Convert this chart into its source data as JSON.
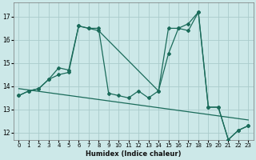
{
  "xlabel": "Humidex (Indice chaleur)",
  "background_color": "#cce8e8",
  "grid_color": "#aacccc",
  "line_color": "#1a6b5a",
  "yticks": [
    12,
    13,
    14,
    15,
    16,
    17
  ],
  "xticks": [
    0,
    1,
    2,
    3,
    4,
    5,
    6,
    7,
    8,
    9,
    10,
    11,
    12,
    13,
    14,
    15,
    16,
    17,
    18,
    19,
    20,
    21,
    22,
    23
  ],
  "xlim": [
    -0.5,
    23.5
  ],
  "ylim": [
    11.7,
    17.6
  ],
  "series1_x": [
    0,
    1,
    2,
    3,
    4,
    5,
    6,
    7,
    8,
    9,
    10,
    11,
    12,
    13,
    14,
    15,
    16,
    17,
    18,
    19,
    20,
    21,
    22,
    23
  ],
  "series1_y": [
    13.6,
    13.8,
    13.9,
    14.3,
    14.8,
    14.7,
    16.6,
    16.5,
    16.5,
    13.7,
    13.6,
    13.5,
    13.8,
    13.5,
    13.8,
    16.5,
    16.5,
    16.4,
    17.2,
    13.1,
    13.1,
    11.7,
    12.1,
    12.3
  ],
  "series2_x": [
    0,
    1,
    2,
    3,
    4,
    5,
    6,
    7,
    8,
    14,
    15,
    16,
    17,
    18,
    19,
    20,
    21,
    22,
    23
  ],
  "series2_y": [
    13.6,
    13.8,
    13.9,
    14.3,
    14.5,
    14.6,
    16.6,
    16.5,
    16.4,
    13.8,
    15.4,
    16.5,
    16.7,
    17.2,
    13.1,
    13.1,
    11.7,
    12.1,
    12.3
  ],
  "trend_x": [
    0,
    23
  ],
  "trend_y": [
    13.9,
    12.55
  ]
}
